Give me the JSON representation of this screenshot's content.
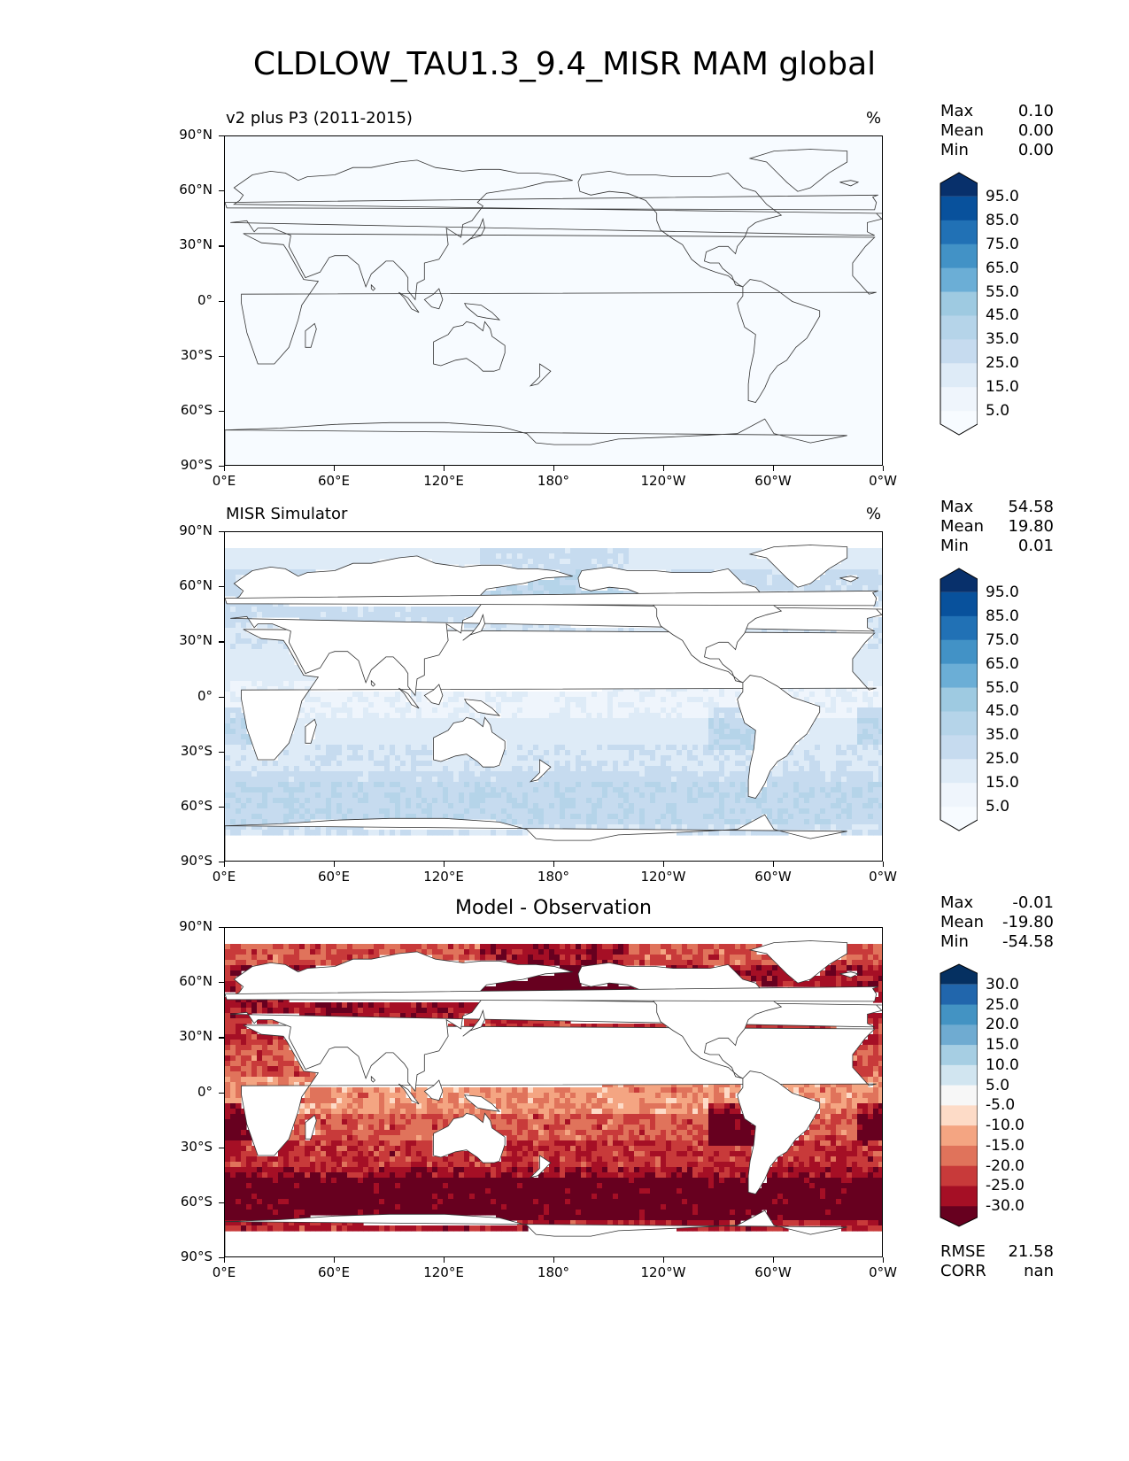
{
  "title": "CLDLOW_TAU1.3_9.4_MISR MAM global",
  "axes": {
    "lat_ticks": [
      "90°N",
      "60°N",
      "30°N",
      "0°",
      "30°S",
      "60°S",
      "90°S"
    ],
    "lon_ticks": [
      "0°E",
      "60°E",
      "120°E",
      "180°",
      "120°W",
      "60°W",
      "0°W"
    ]
  },
  "panels": [
    {
      "title_left": "v2 plus P3 (2011-2015)",
      "title_center": "",
      "units": "%",
      "stats": {
        "max_label": "Max",
        "max": "0.10",
        "mean_label": "Mean",
        "mean": "0.00",
        "min_label": "Min",
        "min": "0.00"
      },
      "colorbar": {
        "labels": [
          "95.0",
          "85.0",
          "75.0",
          "65.0",
          "55.0",
          "45.0",
          "35.0",
          "25.0",
          "15.0",
          "5.0"
        ],
        "colors": [
          "#08306b",
          "#08519c",
          "#2171b5",
          "#4292c6",
          "#6baed6",
          "#9ecae1",
          "#b5d4e9",
          "#c6dbef",
          "#deebf7",
          "#eff5fc",
          "#f7fbff"
        ]
      }
    },
    {
      "title_left": "MISR Simulator",
      "title_center": "",
      "units": "%",
      "stats": {
        "max_label": "Max",
        "max": "54.58",
        "mean_label": "Mean",
        "mean": "19.80",
        "min_label": "Min",
        "min": "0.01"
      },
      "colorbar": {
        "labels": [
          "95.0",
          "85.0",
          "75.0",
          "65.0",
          "55.0",
          "45.0",
          "35.0",
          "25.0",
          "15.0",
          "5.0"
        ],
        "colors": [
          "#08306b",
          "#08519c",
          "#2171b5",
          "#4292c6",
          "#6baed6",
          "#9ecae1",
          "#b5d4e9",
          "#c6dbef",
          "#deebf7",
          "#eff5fc",
          "#f7fbff"
        ]
      }
    },
    {
      "title_left": "",
      "title_center": "Model - Observation",
      "units": "",
      "stats": {
        "max_label": "Max",
        "max": "-0.01",
        "mean_label": "Mean",
        "mean": "-19.80",
        "min_label": "Min",
        "min": "-54.58"
      },
      "colorbar": {
        "labels": [
          "30.0",
          "25.0",
          "20.0",
          "15.0",
          "10.0",
          "5.0",
          "-5.0",
          "-10.0",
          "-15.0",
          "-20.0",
          "-25.0",
          "-30.0"
        ],
        "colors": [
          "#053061",
          "#2166ac",
          "#4393c3",
          "#6fabd1",
          "#a6cee3",
          "#d1e5f0",
          "#f7f7f7",
          "#fddbc7",
          "#f4a582",
          "#e0735b",
          "#c83a3a",
          "#a50f25",
          "#67001f"
        ]
      },
      "rmse_label": "RMSE",
      "rmse": "21.58",
      "corr_label": "CORR",
      "corr": "nan"
    }
  ]
}
